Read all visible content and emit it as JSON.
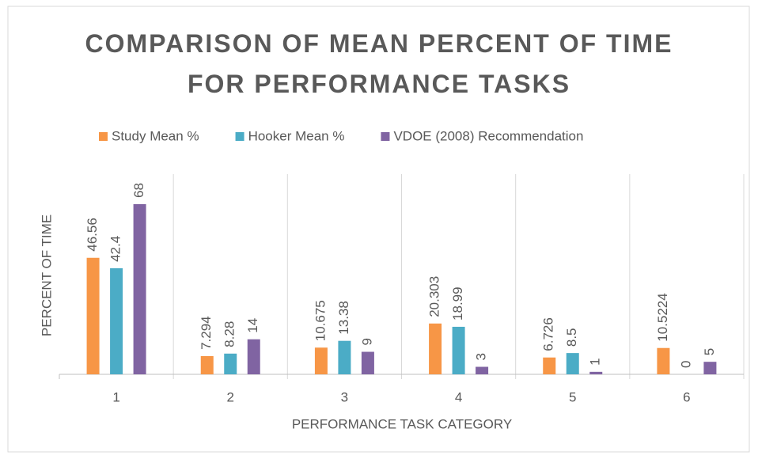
{
  "chart_data": {
    "type": "bar",
    "title": "COMPARISON OF MEAN PERCENT OF TIME FOR PERFORMANCE TASKS",
    "x_label": "PERFORMANCE TASK CATEGORY",
    "y_label": "PERCENT OF TIME",
    "categories": [
      "1",
      "2",
      "3",
      "4",
      "5",
      "6"
    ],
    "series": [
      {
        "name": "Study Mean %",
        "color": "#F79646",
        "values": [
          46.56,
          7.294,
          10.675,
          20.303,
          6.726,
          10.5224
        ]
      },
      {
        "name": "Hooker Mean %",
        "color": "#4BACC6",
        "values": [
          42.4,
          8.28,
          13.38,
          18.99,
          8.5,
          0
        ]
      },
      {
        "name": "VDOE (2008) Recommendation",
        "color": "#8064A2",
        "values": [
          68,
          14,
          9,
          3,
          1,
          5
        ]
      }
    ],
    "ylim": [
      0,
      80
    ],
    "legend": "top"
  }
}
